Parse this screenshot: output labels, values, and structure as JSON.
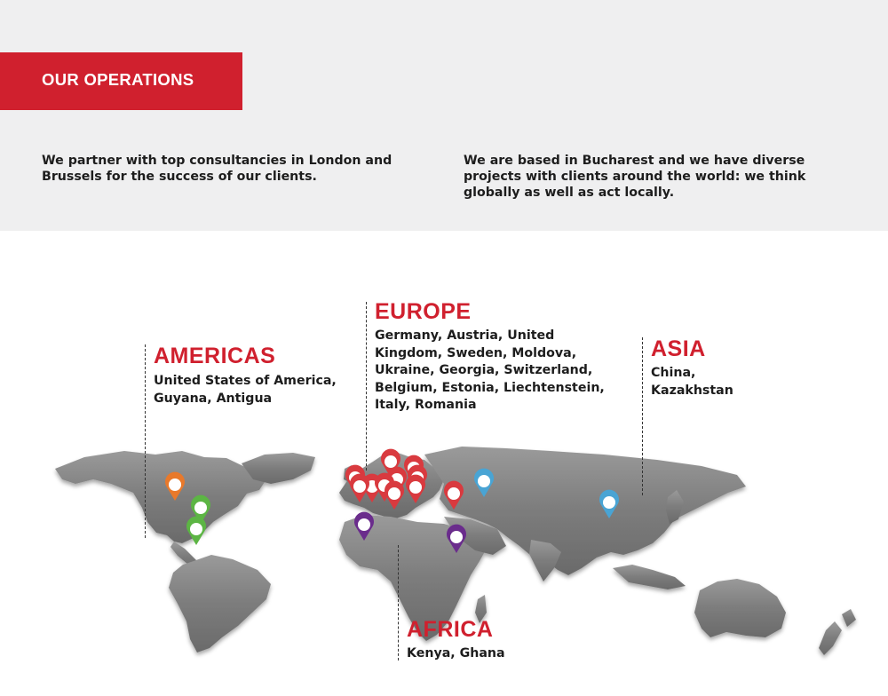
{
  "header": {
    "title": "OUR OPERATIONS",
    "accent_color": "#d0202e"
  },
  "intro": {
    "left": "We partner with top consultancies in London and Brussels for the success of our clients.",
    "right": "We are based in Bucharest and we have diverse projects with clients around the world: we think globally as well as act locally."
  },
  "regions": {
    "americas": {
      "title": "AMERICAS",
      "countries": "United States of America,\nGuyana, Antigua"
    },
    "europe": {
      "title": "EUROPE",
      "countries": "Germany, Austria, United\nKingdom, Sweden, Moldova,\nUkraine, Georgia, Switzerland,\nBelgium, Estonia, Liechtenstein,\nItaly, Romania"
    },
    "asia": {
      "title": "ASIA",
      "countries": "China,\nKazakhstan"
    },
    "africa": {
      "title": "AFRICA",
      "countries": "Kenya, Ghana"
    }
  },
  "marker_colors": {
    "americas_usa": "#e8792b",
    "americas_caribbean": "#5cb544",
    "europe": "#d93a3f",
    "asia": "#49a4d4",
    "africa": "#6a2c8c"
  }
}
